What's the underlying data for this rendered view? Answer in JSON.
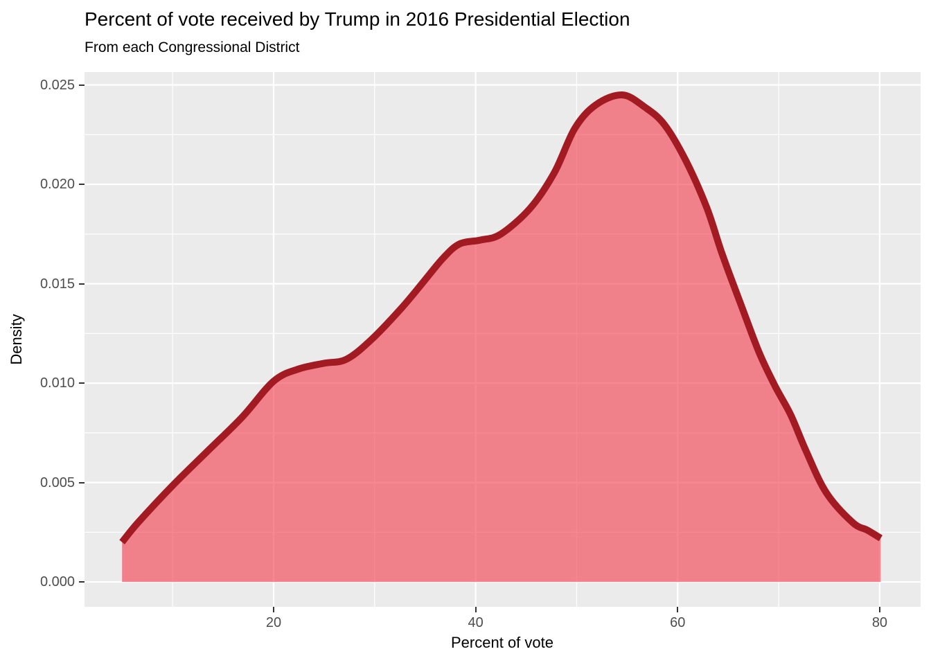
{
  "title": "Percent of vote received by Trump in 2016 Presidential Election",
  "subtitle": "From each Congressional District",
  "chart_data": {
    "type": "area",
    "title": "Percent of vote received by Trump in 2016 Presidential Election",
    "subtitle": "From each Congressional District",
    "xlabel": "Percent of vote",
    "ylabel": "Density",
    "xlim": [
      1.28,
      84.05
    ],
    "ylim": [
      -0.00125,
      0.02565
    ],
    "grid": "on",
    "legend": "none",
    "x_major_ticks": [
      20,
      40,
      60,
      80
    ],
    "x_tick_labels": [
      "20",
      "40",
      "60",
      "80"
    ],
    "x_minor_ticks": [
      10,
      30,
      50,
      70
    ],
    "y_major_ticks": [
      0,
      0.005,
      0.01,
      0.015,
      0.02,
      0.025
    ],
    "y_tick_labels": [
      "0.000",
      "0.005",
      "0.010",
      "0.015",
      "0.020",
      "0.025"
    ],
    "y_minor_ticks": [
      0.0025,
      0.0075,
      0.0125,
      0.0175,
      0.0225
    ],
    "series": [
      {
        "name": "density-of-trump-vote-share",
        "x": [
          5.0,
          6.6,
          10.1,
          13.5,
          16.9,
          20.0,
          22.4,
          25.0,
          27.2,
          29.7,
          32.7,
          35.0,
          36.8,
          38.4,
          40.5,
          42.5,
          45.4,
          47.8,
          49.8,
          51.9,
          54.5,
          56.7,
          58.7,
          60.8,
          62.9,
          64.4,
          66.3,
          68.1,
          69.7,
          71.2,
          72.7,
          74.7,
          77.3,
          78.8,
          80.1
        ],
        "y": [
          0.002,
          0.003,
          0.0049,
          0.0066,
          0.0083,
          0.0101,
          0.0107,
          0.011,
          0.0112,
          0.0122,
          0.0138,
          0.0152,
          0.0163,
          0.017,
          0.0172,
          0.0175,
          0.0188,
          0.0206,
          0.0228,
          0.024,
          0.0245,
          0.0239,
          0.023,
          0.0212,
          0.0188,
          0.0165,
          0.0139,
          0.0115,
          0.0098,
          0.0084,
          0.0066,
          0.0045,
          0.003,
          0.0026,
          0.0022
        ]
      }
    ],
    "baseline_value": 0,
    "colors": {
      "panel_background": "#EBEBEB",
      "major_gridline": "#FFFFFF",
      "minor_gridline": "#FFFFFF",
      "curve_stroke": "#A31B22",
      "area_fill": "#F34656",
      "area_fill_opacity": 0.65,
      "axis_text": "#4D4D4D",
      "tick_mark": "#333333",
      "title_text": "#000000"
    }
  }
}
